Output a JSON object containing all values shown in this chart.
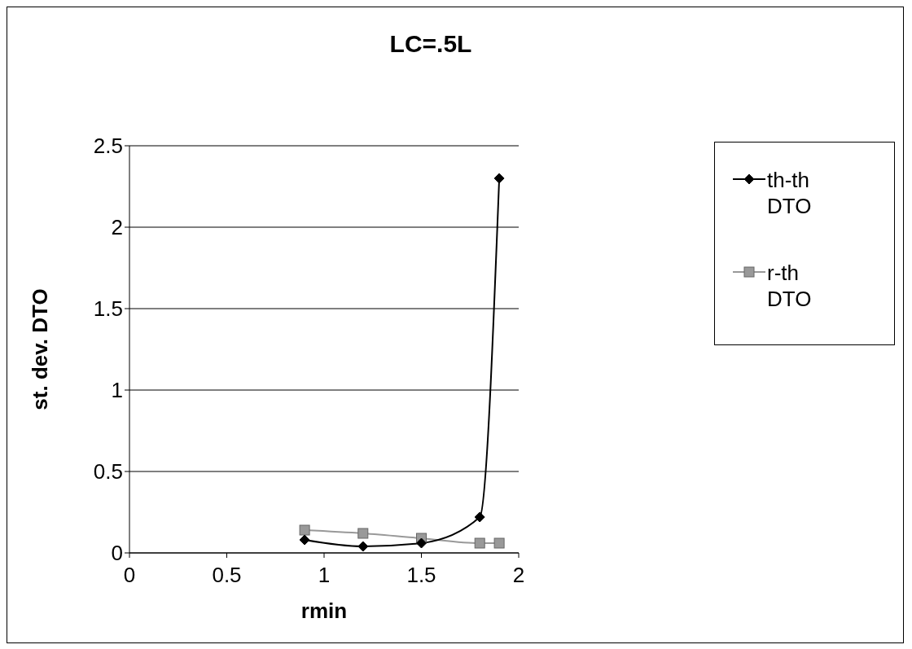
{
  "chart_data": {
    "type": "line",
    "title": "LC=.5L",
    "xlabel": "rmin",
    "ylabel": "st. dev. DTO",
    "x": [
      0.9,
      1.2,
      1.5,
      1.8,
      1.9
    ],
    "series": [
      {
        "name": "th-th DTO",
        "color": "#000000",
        "marker": "diamond",
        "values": [
          0.08,
          0.04,
          0.06,
          0.22,
          2.3
        ]
      },
      {
        "name": "r-th DTO",
        "color": "#999999",
        "marker": "square",
        "values": [
          0.14,
          0.12,
          0.09,
          0.06,
          0.06
        ]
      }
    ],
    "xlim": [
      0,
      2
    ],
    "xticks": [
      0,
      0.5,
      1,
      1.5,
      2
    ],
    "ylim": [
      0,
      2.5
    ],
    "yticks": [
      0,
      0.5,
      1,
      1.5,
      2,
      2.5
    ],
    "grid": "y",
    "legend": "right"
  }
}
